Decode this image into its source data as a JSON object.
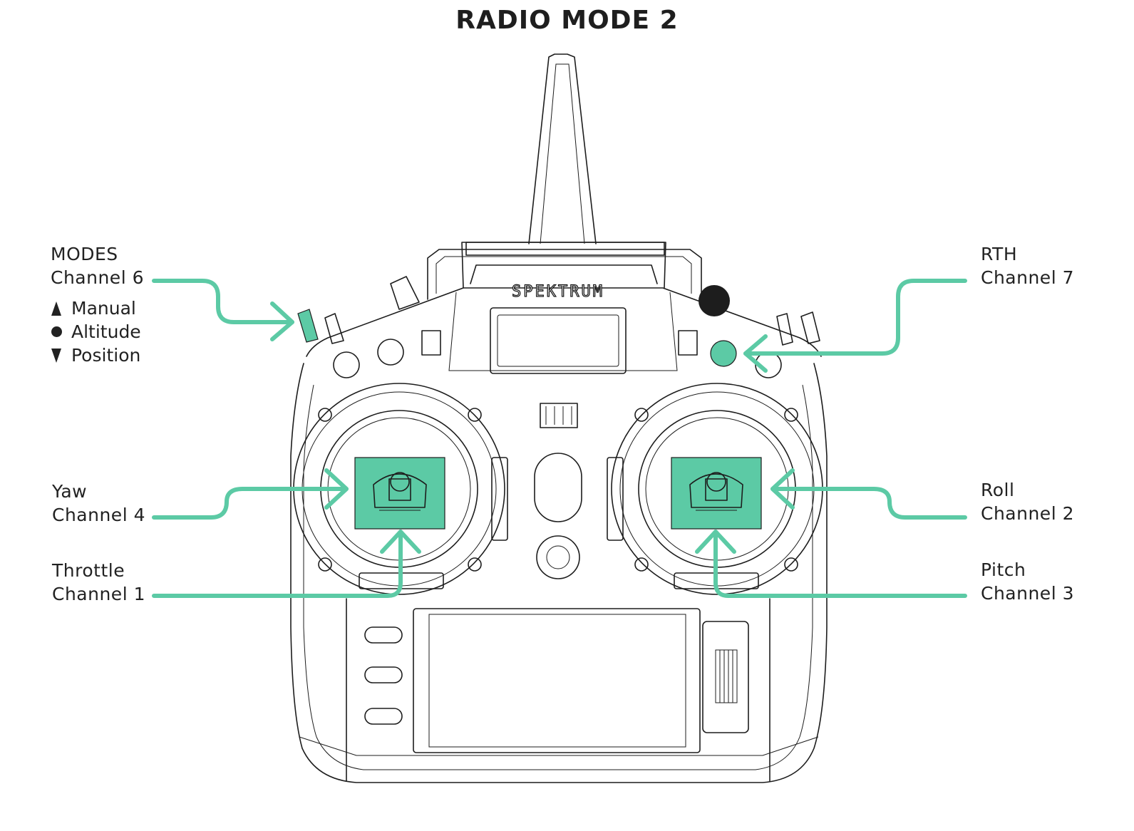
{
  "title": "RADIO MODE 2",
  "accent_color": "#5ccaa5",
  "brand": "SPEKTRUM",
  "labels": {
    "modes": {
      "name": "MODES",
      "channel": "Channel 6"
    },
    "rth": {
      "name": "RTH",
      "channel": "Channel 7"
    },
    "yaw": {
      "name": "Yaw",
      "channel": "Channel 4"
    },
    "roll": {
      "name": "Roll",
      "channel": "Channel 2"
    },
    "throttle": {
      "name": "Throttle",
      "channel": "Channel 1"
    },
    "pitch": {
      "name": "Pitch",
      "channel": "Channel 3"
    }
  },
  "modes_list": [
    {
      "icon": "switch-up-icon",
      "label": "Manual"
    },
    {
      "icon": "switch-middle-icon",
      "label": "Altitude"
    },
    {
      "icon": "switch-down-icon",
      "label": "Position"
    }
  ]
}
